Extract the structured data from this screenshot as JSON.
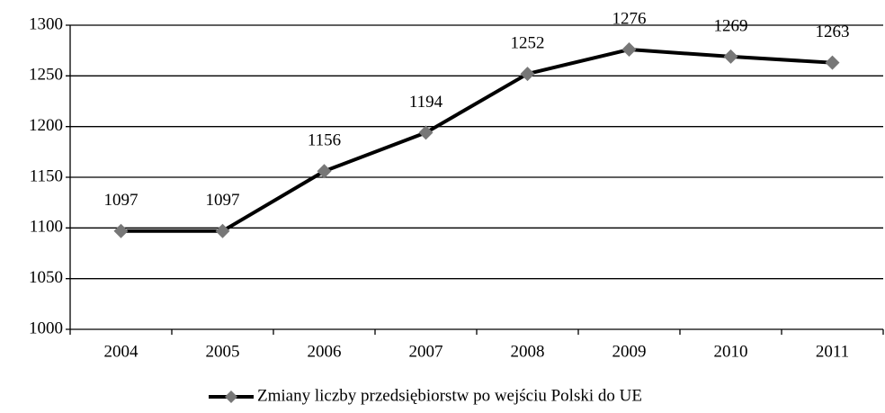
{
  "chart_data": {
    "type": "line",
    "categories": [
      "2004",
      "2005",
      "2006",
      "2007",
      "2008",
      "2009",
      "2010",
      "2011"
    ],
    "series": [
      {
        "name": "Zmiany liczby przedsiębiorstw po wejściu Polski do UE",
        "color": "#000000",
        "marker_color": "#777777",
        "values": [
          1097,
          1097,
          1156,
          1194,
          1252,
          1276,
          1269,
          1263
        ]
      }
    ],
    "ylim": [
      1000,
      1300
    ],
    "yticks": [
      1000,
      1050,
      1100,
      1150,
      1200,
      1250,
      1300
    ],
    "grid": true,
    "legend": "bottom"
  }
}
